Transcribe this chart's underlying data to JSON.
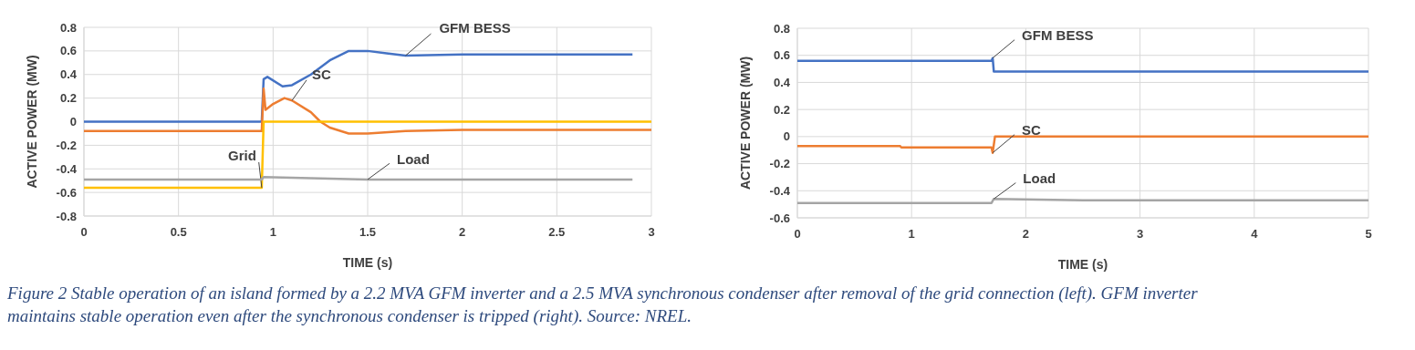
{
  "chart_data": [
    {
      "type": "line",
      "xlabel": "TIME  (s)",
      "ylabel": "ACTIVE  POWER  (MW)",
      "xlim": [
        0,
        3
      ],
      "ylim": [
        -0.8,
        0.8
      ],
      "xticks": [
        0,
        0.5,
        1,
        1.5,
        2,
        2.5,
        3
      ],
      "yticks": [
        {
          "value": -0.8,
          "label": "-0.8"
        },
        {
          "value": -0.6,
          "label": "-0.6"
        },
        {
          "value": -0.4,
          "label": "-0.4"
        },
        {
          "value": -0.2,
          "label": "-0.2"
        },
        {
          "value": 0,
          "label": "0"
        },
        {
          "value": 0.2,
          "label": "0.2"
        },
        {
          "value": 0.4,
          "label": "0.4"
        },
        {
          "value": 0.6,
          "label": "0.6"
        },
        {
          "value": 0.8,
          "label": "0.8"
        }
      ],
      "grid": true,
      "marker": "none",
      "line_style": "solid",
      "annotations": [
        "Figure 2 Stable operation of an island formed by a 2.2 MVA GFM inverter and a 2.5 MVA synchronous condenser after removal of the grid connection (left). GFM inverter maintains stable operation even after the synchronous condenser is tripped (right). Source: NREL."
      ],
      "series": [
        {
          "name": "GFM BESS",
          "color": "#4472c4",
          "x": [
            0,
            0.3,
            0.6,
            0.94,
            0.95,
            0.97,
            1.05,
            1.1,
            1.2,
            1.3,
            1.4,
            1.5,
            1.6,
            1.7,
            2,
            2.5,
            2.9
          ],
          "values": [
            0,
            0,
            0,
            0,
            0.36,
            0.38,
            0.3,
            0.31,
            0.4,
            0.52,
            0.6,
            0.6,
            0.58,
            0.56,
            0.57,
            0.57,
            0.57
          ]
        },
        {
          "name": "SC",
          "color": "#ed7d31",
          "x": [
            0,
            0.3,
            0.6,
            0.94,
            0.95,
            0.96,
            1,
            1.06,
            1.1,
            1.2,
            1.25,
            1.3,
            1.4,
            1.5,
            1.7,
            2,
            2.5,
            3
          ],
          "values": [
            -0.08,
            -0.08,
            -0.08,
            -0.08,
            0.28,
            0.1,
            0.15,
            0.2,
            0.18,
            0.08,
            0,
            -0.05,
            -0.1,
            -0.1,
            -0.08,
            -0.07,
            -0.07,
            -0.07
          ]
        },
        {
          "name": "Grid",
          "color": "#ffc000",
          "x": [
            0,
            0.3,
            0.6,
            0.94,
            0.95,
            1.5,
            2,
            3
          ],
          "values": [
            -0.56,
            -0.56,
            -0.56,
            -0.56,
            0,
            0,
            0,
            0
          ]
        },
        {
          "name": "Load",
          "color": "#a5a5a5",
          "x": [
            0,
            0.5,
            0.94,
            0.95,
            1.5,
            2,
            2.9
          ],
          "values": [
            -0.49,
            -0.49,
            -0.49,
            -0.47,
            -0.49,
            -0.49,
            -0.49
          ]
        }
      ]
    },
    {
      "type": "line",
      "xlabel": "TIME  (s)",
      "ylabel": "ACTIVE  POWER  (MW)",
      "xlim": [
        0,
        5
      ],
      "ylim": [
        -0.6,
        0.8
      ],
      "xticks": [
        0,
        1,
        2,
        3,
        4,
        5
      ],
      "yticks": [
        {
          "value": -0.6,
          "label": "-0.6"
        },
        {
          "value": -0.4,
          "label": "-0.4"
        },
        {
          "value": -0.2,
          "label": "-0.2"
        },
        {
          "value": 0,
          "label": "0"
        },
        {
          "value": 0.2,
          "label": "0.2"
        },
        {
          "value": 0.4,
          "label": "0.4"
        },
        {
          "value": 0.6,
          "label": "0.6"
        },
        {
          "value": 0.8,
          "label": "0.8"
        }
      ],
      "grid": true,
      "marker": "none",
      "line_style": "solid",
      "series": [
        {
          "name": "GFM BESS",
          "color": "#4472c4",
          "x": [
            0,
            1,
            1.7,
            1.71,
            1.72,
            2.5,
            3.5,
            5
          ],
          "values": [
            0.56,
            0.56,
            0.56,
            0.58,
            0.48,
            0.48,
            0.48,
            0.48
          ]
        },
        {
          "name": "SC",
          "color": "#ed7d31",
          "x": [
            0,
            0.9,
            0.91,
            1.7,
            1.71,
            1.73,
            2.5,
            5
          ],
          "values": [
            -0.07,
            -0.07,
            -0.08,
            -0.08,
            -0.12,
            0,
            0,
            0
          ]
        },
        {
          "name": "Load",
          "color": "#a5a5a5",
          "x": [
            0,
            1,
            1.7,
            1.72,
            2.5,
            5
          ],
          "values": [
            -0.49,
            -0.49,
            -0.49,
            -0.46,
            -0.47,
            -0.47
          ]
        }
      ]
    }
  ]
}
